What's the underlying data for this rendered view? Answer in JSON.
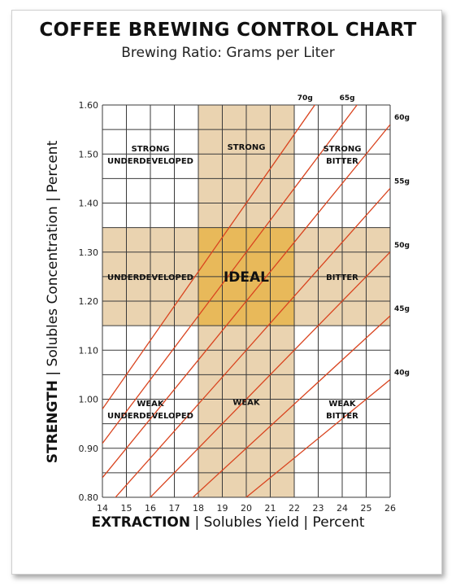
{
  "chart_data": {
    "type": "line",
    "title": "COFFEE BREWING CONTROL CHART",
    "subtitle": "Brewing Ratio: Grams per Liter",
    "xlabel_bold": "EXTRACTION",
    "xlabel_rest": " | Solubles Yield | Percent",
    "ylabel_bold": "STRENGTH",
    "ylabel_rest": " | Solubles Concentration | Percent",
    "xlim": [
      14,
      26
    ],
    "ylim": [
      0.8,
      1.6
    ],
    "x_ticks": [
      "14",
      "15",
      "16",
      "17",
      "18",
      "19",
      "20",
      "21",
      "22",
      "23",
      "24",
      "25",
      "26"
    ],
    "y_ticks": [
      "0.80",
      "0.90",
      "1.00",
      "1.10",
      "1.20",
      "1.30",
      "1.40",
      "1.50",
      "1.60"
    ],
    "grid": true,
    "ideal_band": {
      "extraction": [
        18,
        22
      ],
      "strength": [
        1.15,
        1.35
      ]
    },
    "colors": {
      "line": "#d9441f",
      "band": "#ead3b0",
      "ideal": "#e8b95a",
      "grid": "#3a3a3a"
    },
    "series": [
      {
        "name": "40g",
        "ratio": 40
      },
      {
        "name": "45g",
        "ratio": 45
      },
      {
        "name": "50g",
        "ratio": 50
      },
      {
        "name": "55g",
        "ratio": 55
      },
      {
        "name": "60g",
        "ratio": 60
      },
      {
        "name": "65g",
        "ratio": 65
      },
      {
        "name": "70g",
        "ratio": 70
      }
    ],
    "regions": [
      {
        "lines": [
          "STRONG",
          "UNDERDEVELOPED"
        ],
        "x": 16,
        "y": 1.5
      },
      {
        "lines": [
          "STRONG"
        ],
        "x": 20,
        "y": 1.515
      },
      {
        "lines": [
          "STRONG",
          "BITTER"
        ],
        "x": 24,
        "y": 1.5
      },
      {
        "lines": [
          "UNDERDEVELOPED"
        ],
        "x": 16,
        "y": 1.25
      },
      {
        "lines": [
          "BITTER"
        ],
        "x": 24,
        "y": 1.25
      },
      {
        "lines": [
          "WEAK",
          "UNDERDEVELOPED"
        ],
        "x": 16,
        "y": 0.98
      },
      {
        "lines": [
          "WEAK"
        ],
        "x": 20,
        "y": 0.995
      },
      {
        "lines": [
          "WEAK",
          "BITTER"
        ],
        "x": 24,
        "y": 0.98
      }
    ],
    "ideal_label": "IDEAL"
  }
}
